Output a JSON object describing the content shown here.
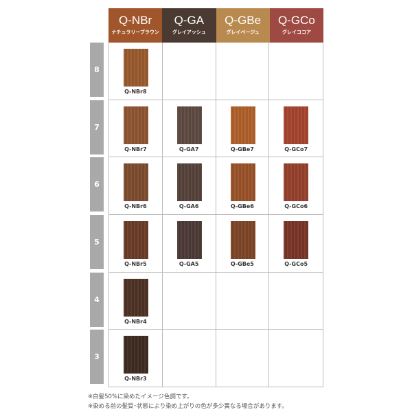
{
  "columns": [
    {
      "code": "Q-NBr",
      "name": "ナチュラリーブラウン",
      "color": "#a0552b"
    },
    {
      "code": "Q-GA",
      "name": "グレイアッシュ",
      "color": "#4a3a32"
    },
    {
      "code": "Q-GBe",
      "name": "グレイベージュ",
      "color": "#b98a50"
    },
    {
      "code": "Q-GCo",
      "name": "グレイココア",
      "color": "#9e4a42"
    }
  ],
  "rows": [
    {
      "level": "8",
      "cells": [
        {
          "label": "Q-NBr8",
          "color": "#9a5a2e"
        },
        null,
        null,
        null
      ]
    },
    {
      "level": "7",
      "cells": [
        {
          "label": "Q-NBr7",
          "color": "#8e5532"
        },
        {
          "label": "Q-GA7",
          "color": "#5e4a42"
        },
        {
          "label": "Q-GBe7",
          "color": "#b0602a"
        },
        {
          "label": "Q-GCo7",
          "color": "#a5442e"
        }
      ]
    },
    {
      "level": "6",
      "cells": [
        {
          "label": "Q-NBr6",
          "color": "#7e4c2e"
        },
        {
          "label": "Q-GA6",
          "color": "#56423a"
        },
        {
          "label": "Q-GBe6",
          "color": "#9a5228"
        },
        {
          "label": "Q-GCo6",
          "color": "#96402c"
        }
      ]
    },
    {
      "level": "5",
      "cells": [
        {
          "label": "Q-NBr5",
          "color": "#6a3c28"
        },
        {
          "label": "Q-GA5",
          "color": "#4c3a36"
        },
        {
          "label": "Q-GBe5",
          "color": "#7e4526"
        },
        {
          "label": "Q-GCo5",
          "color": "#7a3428"
        }
      ]
    },
    {
      "level": "4",
      "cells": [
        {
          "label": "Q-NBr4",
          "color": "#4e3224"
        },
        null,
        null,
        null
      ]
    },
    {
      "level": "3",
      "cells": [
        {
          "label": "Q-NBr3",
          "color": "#3e2a20"
        },
        null,
        null,
        null
      ]
    }
  ],
  "notes": [
    "※白髪50%に染めたイメージ色調です。",
    "※染める前の髪質･状態により染め上がりの色が多少異なる場合があります。"
  ]
}
